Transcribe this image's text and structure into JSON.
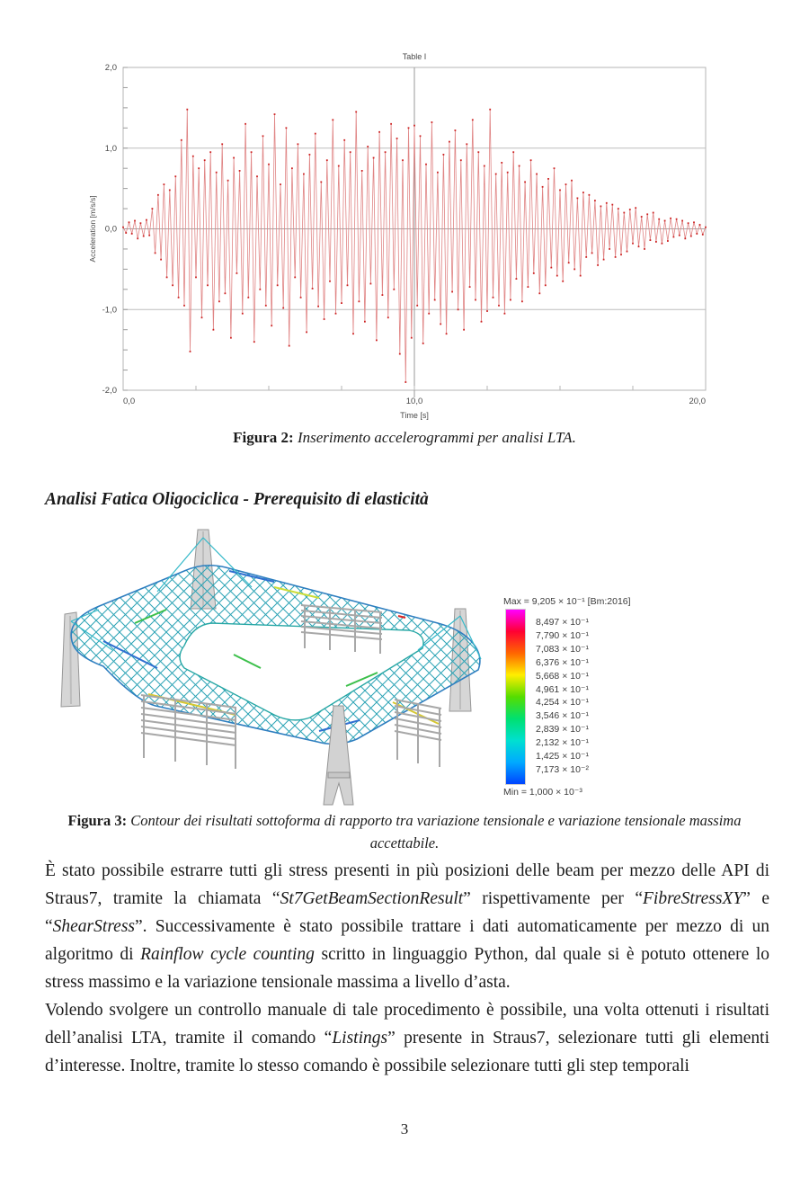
{
  "page": {
    "number": "3"
  },
  "section_heading": "Analisi Fatica Oligociclica - Prerequisito di elasticità",
  "figure2": {
    "caption_label": "Figura 2:",
    "caption_text": " Inserimento accelerogrammi per analisi LTA."
  },
  "figure3": {
    "caption_label": "Figura 3:",
    "caption_text": " Contour dei risultati sottoforma di rapporto tra variazione tensionale e variazione tensionale massima accettabile.",
    "legend": {
      "max_label": "Max = 9,205 × 10⁻¹  [Bm:2016]",
      "min_label": "Min = 1,000 × 10⁻³",
      "entries": [
        "8,497 × 10⁻¹",
        "7,790 × 10⁻¹",
        "7,083 × 10⁻¹",
        "6,376 × 10⁻¹",
        "5,668 × 10⁻¹",
        "4,961 × 10⁻¹",
        "4,254 × 10⁻¹",
        "3,546 × 10⁻¹",
        "2,839 × 10⁻¹",
        "2,132 × 10⁻¹",
        "1,425 × 10⁻¹",
        "7,173 × 10⁻²"
      ],
      "colorbar_colors": [
        "#ff00ff",
        "#ff0033",
        "#ff6600",
        "#ffee00",
        "#55dd00",
        "#00e070",
        "#00e0d0",
        "#00aaff",
        "#0044ff"
      ]
    }
  },
  "body": {
    "paragraphs": [
      [
        {
          "t": "È stato possibile estrarre tutti gli stress presenti in più posizioni delle beam per mezzo delle API di Straus7, tramite la chiamata “"
        },
        {
          "t": "St7GetBeamSectionResult",
          "i": true
        },
        {
          "t": "” rispettivamente per “"
        },
        {
          "t": "FibreStressXY",
          "i": true
        },
        {
          "t": "” e “"
        },
        {
          "t": "ShearStress",
          "i": true
        },
        {
          "t": "”. Successivamente è stato possibile trattare i dati automaticamente per mezzo di un algoritmo di "
        },
        {
          "t": "Rainflow cycle counting",
          "i": true
        },
        {
          "t": " scritto in linguaggio Python, dal quale si è potuto ottenere lo stress massimo e la variazione tensionale massima a livello d’asta."
        }
      ],
      [
        {
          "t": "Volendo svolgere un controllo manuale di tale procedimento è possibile, una volta ottenuti i risultati dell’analisi LTA, tramite il comando “"
        },
        {
          "t": "Listings",
          "i": true
        },
        {
          "t": "” presente in Straus7, selezionare tutti gli elementi d’interesse. Inoltre, tramite lo stesso comando è possibile selezionare tutti gli step temporali"
        }
      ]
    ]
  },
  "chart_data": {
    "type": "line",
    "title": "Table I",
    "xlabel": "Time [s]",
    "ylabel": "Acceleration [m/s/s]",
    "xlim": [
      0,
      20
    ],
    "ylim": [
      -2,
      2
    ],
    "x_ticks": [
      {
        "v": 0,
        "label": "0,0"
      },
      {
        "v": 10,
        "label": "10,0"
      },
      {
        "v": 20,
        "label": "20,0"
      }
    ],
    "x_minor_step": 2.5,
    "y_ticks": [
      {
        "v": 2,
        "label": "2,0"
      },
      {
        "v": 1,
        "label": "1,0"
      },
      {
        "v": 0,
        "label": "0,0"
      },
      {
        "v": -1,
        "label": "-1,0"
      },
      {
        "v": -2,
        "label": "-2,0"
      }
    ],
    "y_minor_step": 0.25,
    "grid_y": [
      1,
      0,
      -1
    ],
    "grid_x": [
      10
    ],
    "legend_position": "none",
    "series": [
      {
        "name": "accelerogram",
        "marker_color": "#cc2222",
        "line_color": "#e08585",
        "t0": 0,
        "dt": 0.1,
        "values": [
          0.02,
          -0.05,
          0.08,
          -0.06,
          0.1,
          -0.12,
          0.07,
          -0.09,
          0.11,
          -0.08,
          0.25,
          -0.3,
          0.42,
          -0.38,
          0.55,
          -0.6,
          0.48,
          -0.7,
          0.65,
          -0.85,
          1.1,
          -0.95,
          1.48,
          -1.52,
          0.9,
          -0.6,
          0.75,
          -1.1,
          0.85,
          -0.7,
          0.95,
          -1.25,
          0.7,
          -0.9,
          1.05,
          -0.8,
          0.6,
          -1.35,
          0.88,
          -0.55,
          0.72,
          -1.05,
          1.3,
          -0.85,
          0.95,
          -1.4,
          0.65,
          -0.75,
          1.15,
          -0.95,
          0.8,
          -1.2,
          1.42,
          -0.7,
          0.55,
          -0.98,
          1.25,
          -1.45,
          0.75,
          -0.6,
          1.05,
          -0.85,
          0.68,
          -1.28,
          0.92,
          -0.74,
          1.18,
          -0.96,
          0.58,
          -1.12,
          0.85,
          -0.65,
          1.35,
          -1.05,
          0.78,
          -0.92,
          1.1,
          -0.7,
          0.95,
          -1.3,
          1.45,
          -0.9,
          0.72,
          -1.15,
          1.02,
          -0.68,
          0.88,
          -1.38,
          1.2,
          -0.82,
          0.95,
          -1.1,
          1.3,
          -0.75,
          1.12,
          -1.55,
          0.85,
          -1.9,
          1.25,
          -1.35,
          1.28,
          -0.95,
          1.15,
          -1.42,
          0.8,
          -1.05,
          1.32,
          -0.88,
          0.7,
          -1.18,
          0.92,
          -1.3,
          1.08,
          -0.78,
          1.22,
          -1.0,
          0.85,
          -1.25,
          1.05,
          -0.72,
          1.35,
          -0.88,
          0.95,
          -1.15,
          0.78,
          -1.02,
          1.48,
          -0.85,
          0.68,
          -0.95,
          0.82,
          -1.05,
          0.7,
          -0.88,
          0.95,
          -0.62,
          0.78,
          -0.9,
          0.58,
          -0.72,
          0.85,
          -0.55,
          0.68,
          -0.8,
          0.52,
          -0.7,
          0.62,
          -0.48,
          0.75,
          -0.58,
          0.48,
          -0.65,
          0.55,
          -0.42,
          0.6,
          -0.5,
          0.38,
          -0.58,
          0.45,
          -0.35,
          0.42,
          -0.3,
          0.35,
          -0.45,
          0.28,
          -0.38,
          0.32,
          -0.25,
          0.3,
          -0.35,
          0.25,
          -0.32,
          0.2,
          -0.28,
          0.24,
          -0.18,
          0.26,
          -0.22,
          0.15,
          -0.25,
          0.18,
          -0.14,
          0.2,
          -0.16,
          0.12,
          -0.18,
          0.1,
          -0.15,
          0.13,
          -0.1,
          0.12,
          -0.08,
          0.1,
          -0.12,
          0.07,
          -0.09,
          0.08,
          -0.06,
          0.05,
          -0.07,
          0.02
        ]
      }
    ]
  }
}
